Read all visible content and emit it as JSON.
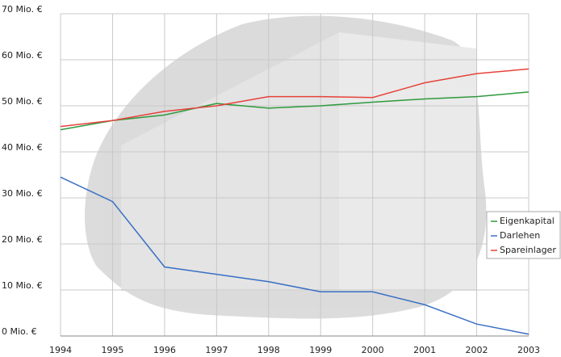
{
  "chart_data": {
    "type": "line",
    "x": [
      1994,
      1995,
      1996,
      1997,
      1998,
      1999,
      2000,
      2001,
      2002,
      2003
    ],
    "xlim": [
      1994,
      2003
    ],
    "xticks": [
      1994,
      1995,
      1996,
      1997,
      1998,
      1999,
      2000,
      2001,
      2002,
      2003
    ],
    "ylim": [
      0,
      70
    ],
    "yticks": [
      {
        "value": 0,
        "label": "0 Mio. €"
      },
      {
        "value": 10,
        "label": "10 Mio. €"
      },
      {
        "value": 20,
        "label": "20 Mio. €"
      },
      {
        "value": 30,
        "label": "30 Mio. €"
      },
      {
        "value": 40,
        "label": "40 Mio. €"
      },
      {
        "value": 50,
        "label": "50 Mio. €"
      },
      {
        "value": 60,
        "label": "60 Mio. €"
      },
      {
        "value": 70,
        "label": "70 Mio. €"
      }
    ],
    "grid": true,
    "legend": "right",
    "series": [
      {
        "name": "Eigenkapital",
        "color": "#2e9a3e",
        "values": [
          44.8,
          46.8,
          48,
          50.5,
          49.5,
          50,
          50.8,
          51.5,
          52,
          53
        ]
      },
      {
        "name": "Darlehen",
        "color": "#3a6fc4",
        "values": [
          34.5,
          29.2,
          15,
          13.4,
          11.8,
          9.6,
          9.6,
          6.8,
          2.6,
          0.4
        ]
      },
      {
        "name": "Spareinlager",
        "color": "#e8413a",
        "values": [
          45.5,
          46.8,
          48.8,
          50,
          52,
          52,
          51.8,
          55,
          57,
          58
        ]
      }
    ]
  }
}
